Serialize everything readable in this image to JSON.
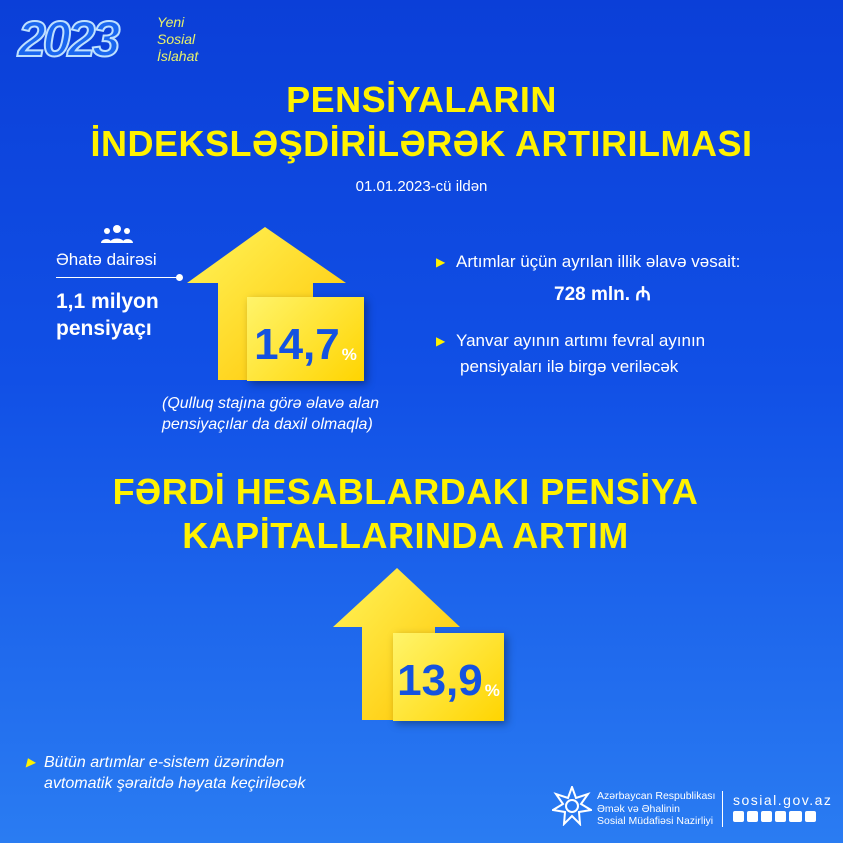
{
  "logo": {
    "year": "2023",
    "lines": [
      "Yeni",
      "Sosial",
      "İslahat"
    ]
  },
  "section1": {
    "title_lines": [
      "PENSİYALARIN",
      "İNDEKSLƏŞDİRİLƏRƏK ARTIRILMASI"
    ],
    "date": "01.01.2023-cü ildən",
    "coverage_label": "Əhatə dairəsi",
    "coverage_lines": [
      "1,1 milyon",
      "pensiyaçı"
    ],
    "increase": "14,7",
    "percent_sign": "%",
    "note_lines": [
      "(Qulluq stajına görə əlavə alan",
      "pensiyaçılar da daxil olmaqla)"
    ],
    "bullets": [
      {
        "lines": [
          "Artımlar üçün ayrılan illik əlavə vəsait:"
        ],
        "amount": "728 mln. ₼"
      },
      {
        "lines": [
          "Yanvar ayının artımı fevral ayının",
          "pensiyaları ilə birgə veriləcək"
        ]
      }
    ]
  },
  "section2": {
    "title_lines": [
      "FƏRDİ HESABLARDAKI PENSİYA",
      "KAPİTALLARINDA ARTIM"
    ],
    "increase": "13,9",
    "percent_sign": "%",
    "note_lines": [
      "Bütün artımlar e-sistem üzərindən",
      "avtomatik şəraitdə həyata keçiriləcək"
    ]
  },
  "footer": {
    "ministry_lines": [
      "Azərbaycan Respublikası",
      "Əmək və Əhalinin",
      "Sosial Müdafiəsi Nazirliyi"
    ],
    "website": "sosial.gov.az",
    "social_icons": [
      "facebook-icon",
      "instagram-icon",
      "telegram-icon",
      "twitter-icon",
      "youtube-icon",
      "linkedin-icon"
    ]
  },
  "colors": {
    "accent_yellow": "#fff200",
    "background_top": "#0b3fd8",
    "background_bottom": "#2a7cf2"
  }
}
